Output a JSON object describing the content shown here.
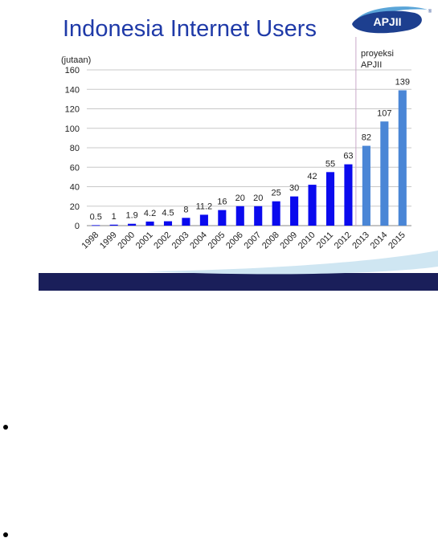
{
  "page": {
    "title": "Indonesia Internet Users",
    "logo_text": "APJII",
    "logo_mark": "®"
  },
  "colors": {
    "title": "#1f3aa8",
    "actual_bar": "#0a0aee",
    "projection_bar": "#4a86d6",
    "band_dark": "#1a1f5a",
    "band_light": "#cfe6f2"
  },
  "chart_data": {
    "type": "bar",
    "title": "Indonesia Internet Users",
    "ylabel": "(jutaan)",
    "ylim": [
      0,
      160
    ],
    "yticks": [
      0,
      20,
      40,
      60,
      80,
      100,
      120,
      140,
      160
    ],
    "grid": true,
    "categories": [
      "1998",
      "1999",
      "2000",
      "2001",
      "2002",
      "2003",
      "2004",
      "2005",
      "2006",
      "2007",
      "2008",
      "2009",
      "2010",
      "2011",
      "2012",
      "2013",
      "2014",
      "2015"
    ],
    "values": [
      0.5,
      1,
      1.9,
      4.2,
      4.5,
      8,
      11.2,
      16,
      20,
      20,
      25,
      30,
      42,
      55,
      63,
      82,
      107,
      139
    ],
    "data_labels": [
      "0.5",
      "1",
      "1.9",
      "4.2",
      "4.5",
      "8",
      "11.2",
      "16",
      "20",
      "20",
      "25",
      "30",
      "42",
      "55",
      "63",
      "82",
      "107",
      "139"
    ],
    "projection_start_index": 15,
    "annotation": "proyeksi\nAPJII"
  }
}
